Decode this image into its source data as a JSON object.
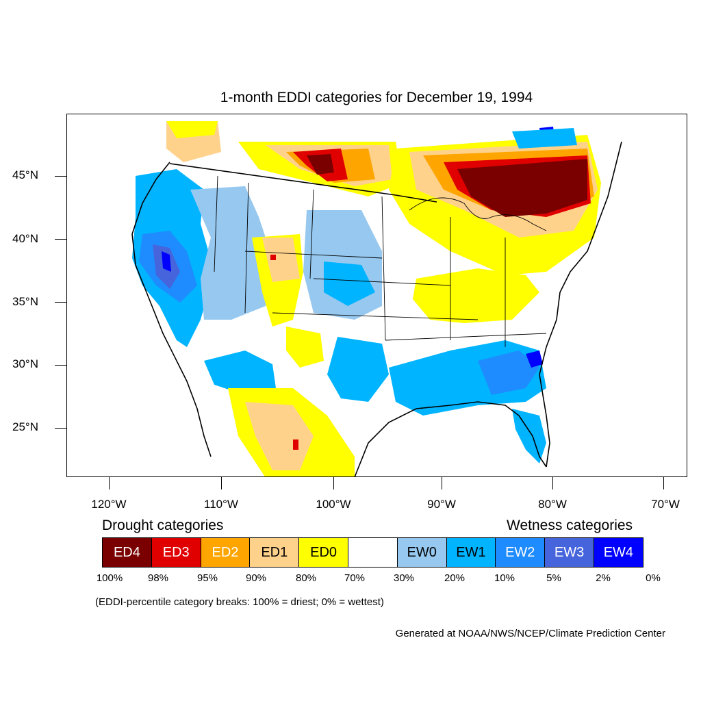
{
  "title": "1-month EDDI categories for December 19, 1994",
  "map": {
    "lat_labels": [
      "45°N",
      "40°N",
      "35°N",
      "30°N",
      "25°N"
    ],
    "lon_labels": [
      "120°W",
      "110°W",
      "100°W",
      "90°W",
      "80°W",
      "70°W"
    ],
    "colors": {
      "ED4": "#7a0000",
      "ED3": "#e00000",
      "ED2": "#ffa500",
      "ED1": "#ffd28c",
      "ED0": "#ffff00",
      "none": "#ffffff",
      "EW0": "#96c8f0",
      "EW1": "#00b4ff",
      "EW2": "#1e8cff",
      "EW3": "#4664dc",
      "EW4": "#0000ff"
    }
  },
  "legend": {
    "drought_heading": "Drought categories",
    "wetness_heading": "Wetness categories",
    "cells": [
      {
        "label": "ED4",
        "color": "#7a0000",
        "text_color": "#ffffff"
      },
      {
        "label": "ED3",
        "color": "#e00000",
        "text_color": "#ffffff"
      },
      {
        "label": "ED2",
        "color": "#ffa500",
        "text_color": "#ffffff"
      },
      {
        "label": "ED1",
        "color": "#ffd28c",
        "text_color": "#000000"
      },
      {
        "label": "ED0",
        "color": "#ffff00",
        "text_color": "#000000"
      },
      {
        "label": "",
        "color": "#ffffff",
        "text_color": "#000000"
      },
      {
        "label": "EW0",
        "color": "#96c8f0",
        "text_color": "#000000"
      },
      {
        "label": "EW1",
        "color": "#00b4ff",
        "text_color": "#000000"
      },
      {
        "label": "EW2",
        "color": "#1e8cff",
        "text_color": "#ffffff"
      },
      {
        "label": "EW3",
        "color": "#4664dc",
        "text_color": "#ffffff"
      },
      {
        "label": "EW4",
        "color": "#0000ff",
        "text_color": "#ffffff"
      }
    ],
    "breaks": [
      "100%",
      "98%",
      "95%",
      "90%",
      "80%",
      "70%",
      "30%",
      "20%",
      "10%",
      "5%",
      "2%",
      "0%"
    ],
    "note": "(EDDI-percentile category breaks: 100% = driest; 0% = wettest)"
  },
  "credit": "Generated at NOAA/NWS/NCEP/Climate Prediction Center"
}
